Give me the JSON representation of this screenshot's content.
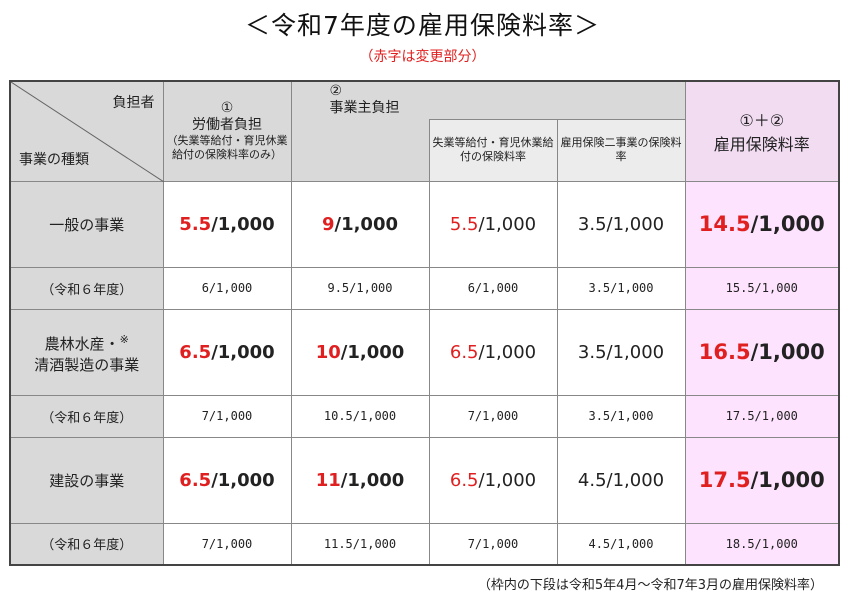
{
  "title": "＜令和7年度の雇用保険料率＞",
  "subtitle": "（赤字は変更部分）",
  "footnote": "（枠内の下段は令和5年4月～令和7年3月の雇用保険料率）",
  "header": {
    "corner_top": "負担者",
    "corner_bottom": "事業の種類",
    "worker_num": "①",
    "worker_title": "労働者負担",
    "worker_note": "（失業等給付・育児休業給付の保険料率のみ）",
    "employer_num": "②",
    "employer_title": "事業主負担",
    "employer_sub1": "失業等給付・育児休業給付の保険料率",
    "employer_sub2": "雇用保険二事業の保険料率",
    "total_num": "①＋②",
    "total_title": "雇用保険料率"
  },
  "rows": [
    {
      "label": "一般の事業",
      "worker_red": "5.5",
      "worker_rest": "/1,000",
      "employer_red": "9",
      "employer_rest": "/1,000",
      "sub1_red": "5.5",
      "sub1_rest": "/1,000",
      "sub2": "3.5/1,000",
      "total_red": "14.5",
      "total_rest": "/1,000",
      "prev_label": "（令和６年度）",
      "prev_worker": "6/1,000",
      "prev_employer": "9.5/1,000",
      "prev_sub1": "6/1,000",
      "prev_sub2": "3.5/1,000",
      "prev_total": "15.5/1,000"
    },
    {
      "label": "農林水産・※清酒製造の事業",
      "label_line1": "農林水産・",
      "label_mark": "※",
      "label_line2": "清酒製造の事業",
      "worker_red": "6.5",
      "worker_rest": "/1,000",
      "employer_red": "10",
      "employer_rest": "/1,000",
      "sub1_red": "6.5",
      "sub1_rest": "/1,000",
      "sub2": "3.5/1,000",
      "total_red": "16.5",
      "total_rest": "/1,000",
      "prev_label": "（令和６年度）",
      "prev_worker": "7/1,000",
      "prev_employer": "10.5/1,000",
      "prev_sub1": "7/1,000",
      "prev_sub2": "3.5/1,000",
      "prev_total": "17.5/1,000"
    },
    {
      "label": "建設の事業",
      "worker_red": "6.5",
      "worker_rest": "/1,000",
      "employer_red": "11",
      "employer_rest": "/1,000",
      "sub1_red": "6.5",
      "sub1_rest": "/1,000",
      "sub2": "4.5/1,000",
      "total_red": "17.5",
      "total_rest": "/1,000",
      "prev_label": "（令和６年度）",
      "prev_worker": "7/1,000",
      "prev_employer": "11.5/1,000",
      "prev_sub1": "7/1,000",
      "prev_sub2": "4.5/1,000",
      "prev_total": "18.5/1,000"
    }
  ],
  "colors": {
    "red": "#e02020",
    "header_gray": "#d9d9d9",
    "pink": "#fde3fd"
  }
}
